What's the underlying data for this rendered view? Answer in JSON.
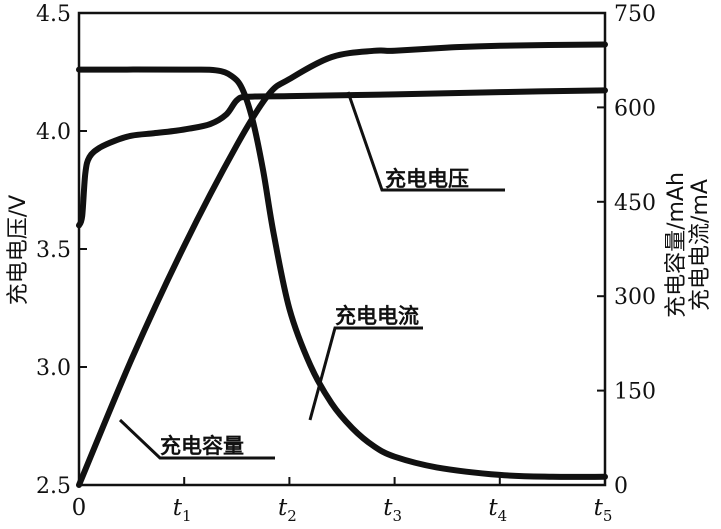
{
  "chart_data": {
    "type": "line",
    "x": [
      "0",
      "t1",
      "t2",
      "t3",
      "t4",
      "t5"
    ],
    "x_tick_labels": [
      {
        "base": "0",
        "sub": ""
      },
      {
        "base": "t",
        "sub": "1"
      },
      {
        "base": "t",
        "sub": "2"
      },
      {
        "base": "t",
        "sub": "3"
      },
      {
        "base": "t",
        "sub": "4"
      },
      {
        "base": "t",
        "sub": "5"
      }
    ],
    "left_axis": {
      "label": "充电电压/V",
      "ylim": [
        2.5,
        4.5
      ],
      "ticks": [
        "2.5",
        "3.0",
        "3.5",
        "4.0",
        "4.5"
      ]
    },
    "right_axis": {
      "labels": [
        "充电容量/mAh",
        "充电电流/mA"
      ],
      "ylim": [
        0,
        750
      ],
      "ticks": [
        "0",
        "150",
        "300",
        "450",
        "600",
        "750"
      ]
    },
    "series": [
      {
        "name": "充电电压",
        "axis": "left",
        "points": [
          [
            0,
            3.6
          ],
          [
            0.03,
            3.64
          ],
          [
            0.06,
            3.82
          ],
          [
            0.1,
            3.89
          ],
          [
            0.2,
            3.93
          ],
          [
            0.35,
            3.96
          ],
          [
            0.5,
            3.98
          ],
          [
            0.7,
            3.99
          ],
          [
            0.9,
            4.0
          ],
          [
            1.05,
            4.01
          ],
          [
            1.25,
            4.03
          ],
          [
            1.4,
            4.07
          ],
          [
            1.5,
            4.13
          ],
          [
            1.6,
            4.145
          ],
          [
            2.0,
            4.148
          ],
          [
            3.0,
            4.155
          ],
          [
            4.0,
            4.165
          ],
          [
            5.0,
            4.172
          ]
        ]
      },
      {
        "name": "充电电流",
        "axis": "right",
        "points": [
          [
            0,
            660
          ],
          [
            1.0,
            660
          ],
          [
            1.3,
            659
          ],
          [
            1.45,
            650
          ],
          [
            1.55,
            630
          ],
          [
            1.65,
            580
          ],
          [
            1.75,
            500
          ],
          [
            1.85,
            400
          ],
          [
            2.0,
            280
          ],
          [
            2.2,
            190
          ],
          [
            2.4,
            130
          ],
          [
            2.6,
            90
          ],
          [
            2.8,
            62
          ],
          [
            3.0,
            45
          ],
          [
            3.4,
            28
          ],
          [
            4.0,
            16
          ],
          [
            4.5,
            13
          ],
          [
            5.0,
            13
          ]
        ]
      },
      {
        "name": "充电容量",
        "axis": "right",
        "points": [
          [
            0,
            0
          ],
          [
            0.5,
            200
          ],
          [
            1.0,
            380
          ],
          [
            1.5,
            540
          ],
          [
            1.8,
            620
          ],
          [
            2.0,
            645
          ],
          [
            2.4,
            680
          ],
          [
            2.8,
            690
          ],
          [
            3.0,
            690
          ],
          [
            3.5,
            695
          ],
          [
            4.0,
            698
          ],
          [
            5.0,
            700
          ]
        ]
      }
    ],
    "annotations": [
      {
        "text": "充电电压",
        "series": "充电电压"
      },
      {
        "text": "充电电流",
        "series": "充电电流"
      },
      {
        "text": "充电容量",
        "series": "充电容量"
      }
    ]
  }
}
